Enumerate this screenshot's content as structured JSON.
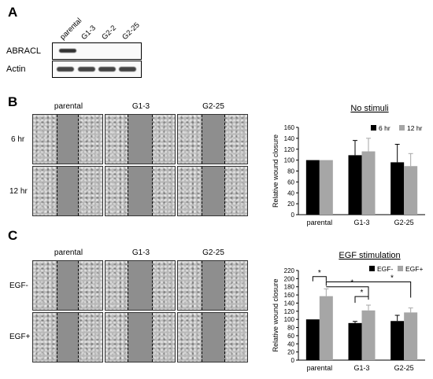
{
  "panels": {
    "a": "A",
    "b": "B",
    "c": "C"
  },
  "blot": {
    "lanes": [
      "parental",
      "G1-3",
      "G2-2",
      "G2-25"
    ],
    "rows": [
      "ABRACL",
      "Actin"
    ]
  },
  "wound_panel_b": {
    "conditions": [
      "parental",
      "G1-3",
      "G2-25"
    ],
    "rows": [
      "6 hr",
      "12 hr"
    ]
  },
  "wound_panel_c": {
    "conditions": [
      "parental",
      "G1-3",
      "G2-25"
    ],
    "rows": [
      "EGF-",
      "EGF+"
    ]
  },
  "colors": {
    "series_dark": "#000000",
    "series_light": "#a6a6a6"
  },
  "chart_data": [
    {
      "type": "bar",
      "title": "No stimuli",
      "ylabel": "Relative wound closure",
      "categories": [
        "parental",
        "G1-3",
        "G2-25"
      ],
      "ylim": [
        0,
        160
      ],
      "yticks": [
        "0",
        "20",
        "40",
        "60",
        "80",
        "100",
        "120",
        "140",
        "160"
      ],
      "series": [
        {
          "name": "6 hr",
          "values": [
            100,
            109,
            96
          ],
          "errors": [
            0,
            27,
            33
          ]
        },
        {
          "name": "12 hr",
          "values": [
            100,
            116,
            89
          ],
          "errors": [
            0,
            24,
            23
          ]
        }
      ],
      "legend_position": "top-right"
    },
    {
      "type": "bar",
      "title": "EGF stimulation",
      "ylabel": "Relative wound closure",
      "categories": [
        "parental",
        "G1-3",
        "G2-25"
      ],
      "ylim": [
        0,
        220
      ],
      "yticks": [
        "0",
        "20",
        "40",
        "60",
        "80",
        "100",
        "120",
        "140",
        "160",
        "180",
        "200",
        "220"
      ],
      "series": [
        {
          "name": "EGF-",
          "values": [
            100,
            91,
            96
          ],
          "errors": [
            0,
            4,
            14
          ]
        },
        {
          "name": "EGF+",
          "values": [
            157,
            122,
            117
          ],
          "errors": [
            18,
            13,
            11
          ]
        }
      ],
      "significance": [
        "*",
        "*",
        "*",
        "*"
      ],
      "legend_position": "top-right"
    }
  ]
}
